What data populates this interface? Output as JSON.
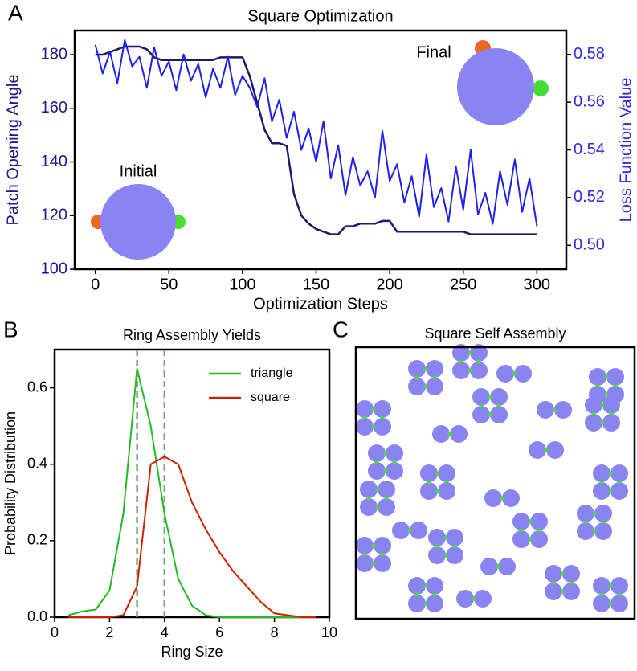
{
  "chart_data": [
    {
      "type": "line",
      "panel_label": "A",
      "title": "Square Optimization",
      "xlabel": "Optimization Steps",
      "ylabel": "Patch Opening Angle",
      "y2label": "Loss Function Value",
      "annotations": [
        "Initial",
        "Final"
      ],
      "x": [
        0,
        5,
        10,
        15,
        20,
        25,
        30,
        35,
        40,
        45,
        50,
        55,
        60,
        65,
        70,
        75,
        80,
        85,
        90,
        95,
        100,
        105,
        110,
        115,
        120,
        125,
        130,
        135,
        140,
        145,
        150,
        155,
        160,
        165,
        170,
        175,
        180,
        185,
        190,
        195,
        200,
        205,
        210,
        215,
        220,
        225,
        230,
        235,
        240,
        245,
        250,
        255,
        260,
        265,
        270,
        275,
        280,
        285,
        290,
        295,
        300
      ],
      "xlim": [
        -14,
        320
      ],
      "xticks": [
        0,
        50,
        100,
        150,
        200,
        250,
        300
      ],
      "ylim": [
        100,
        189
      ],
      "yticks": [
        100,
        120,
        140,
        160,
        180
      ],
      "y2lim": [
        0.49,
        0.59
      ],
      "y2ticks": [
        {
          "value": 0.5,
          "label": "0.50"
        },
        0.52,
        0.54,
        0.56,
        0.58
      ],
      "series": [
        {
          "color": "#1b1b6b",
          "values": [
            180,
            180,
            181,
            182,
            183,
            183,
            183,
            182,
            179,
            178,
            178,
            178,
            178,
            178,
            178,
            178,
            178,
            179,
            179,
            179,
            179,
            172,
            162,
            152,
            147,
            147,
            146,
            128,
            120,
            117,
            115,
            114,
            113,
            113,
            116,
            116,
            117,
            117,
            117,
            118,
            118,
            114,
            114,
            114,
            114,
            114,
            114,
            114,
            114,
            114,
            114,
            113,
            113,
            113,
            113,
            113,
            113,
            113,
            113,
            113,
            113
          ]
        },
        {
          "color": "#2020e8",
          "axis": "y2",
          "values": [
            0.584,
            0.572,
            0.581,
            0.568,
            0.586,
            0.575,
            0.579,
            0.566,
            0.583,
            0.571,
            0.577,
            0.565,
            0.58,
            0.569,
            0.576,
            0.562,
            0.574,
            0.566,
            0.579,
            0.563,
            0.571,
            0.566,
            0.558,
            0.57,
            0.552,
            0.561,
            0.545,
            0.556,
            0.54,
            0.549,
            0.535,
            0.552,
            0.528,
            0.542,
            0.521,
            0.537,
            0.525,
            0.531,
            0.52,
            0.548,
            0.527,
            0.534,
            0.518,
            0.529,
            0.512,
            0.538,
            0.516,
            0.524,
            0.51,
            0.533,
            0.515,
            0.54,
            0.513,
            0.522,
            0.509,
            0.531,
            0.517,
            0.536,
            0.514,
            0.528,
            0.508
          ]
        }
      ]
    },
    {
      "type": "line",
      "panel_label": "B",
      "title": "Ring Assembly Yields",
      "xlabel": "Ring Size",
      "ylabel": "Probability Distribution",
      "x": [
        0.5,
        1,
        1.5,
        2,
        2.5,
        3,
        3.5,
        4,
        4.5,
        5,
        5.5,
        6,
        6.5,
        7,
        7.5,
        8,
        8.5,
        9,
        9.5
      ],
      "xlim": [
        0,
        10
      ],
      "xticks": [
        0,
        2,
        4,
        6,
        8,
        10
      ],
      "ylim": [
        0,
        0.7
      ],
      "yticks": [
        {
          "value": 0,
          "label": "0.0"
        },
        0.2,
        0.4,
        0.6
      ],
      "vlines": [
        3,
        4
      ],
      "legend": "upper right",
      "series": [
        {
          "name": "triangle",
          "color": "#22bb22",
          "values": [
            0.005,
            0.015,
            0.02,
            0.07,
            0.27,
            0.65,
            0.5,
            0.27,
            0.1,
            0.03,
            0.005,
            0,
            0,
            0,
            0,
            0,
            0,
            0,
            0
          ]
        },
        {
          "name": "square",
          "color": "#cc2200",
          "values": [
            0,
            0,
            0,
            0,
            0.005,
            0.08,
            0.4,
            0.42,
            0.4,
            0.3,
            0.23,
            0.17,
            0.12,
            0.08,
            0.04,
            0.01,
            0.005,
            0,
            0
          ]
        }
      ]
    },
    {
      "type": "scene",
      "panel_label": "C",
      "title": "Square Self Assembly"
    }
  ]
}
